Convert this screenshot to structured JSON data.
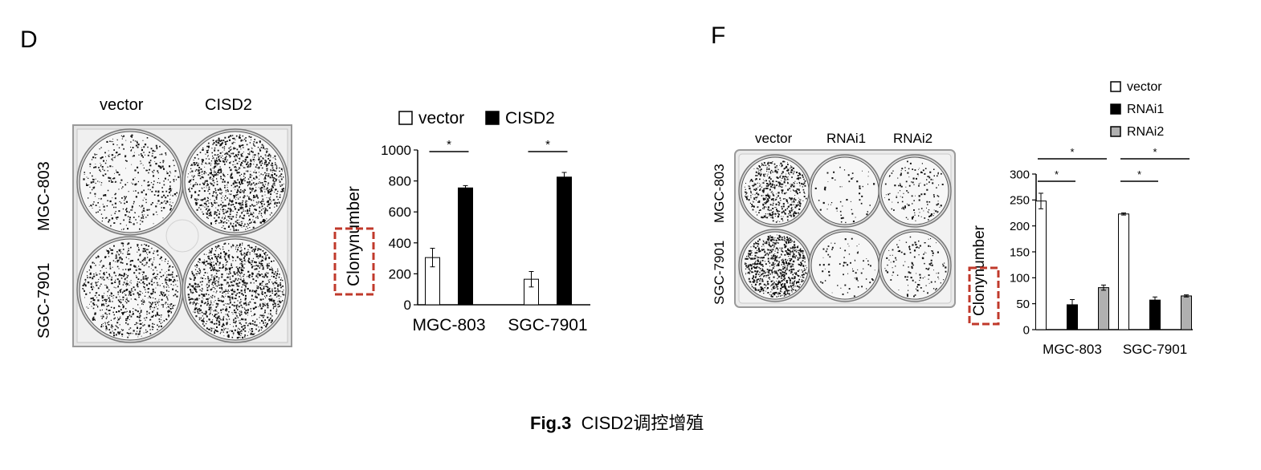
{
  "figure": {
    "caption_label": "Fig.3",
    "caption_text": "CISD2调控增殖"
  },
  "panel_d": {
    "letter": "D",
    "plate": {
      "columns": [
        "vector",
        "CISD2"
      ],
      "rows": [
        "MGC-803",
        "SGC-7901"
      ],
      "wells": [
        {
          "row": "MGC-803",
          "column": "vector",
          "density": 0.3
        },
        {
          "row": "MGC-803",
          "column": "CISD2",
          "density": 0.75
        },
        {
          "row": "SGC-7901",
          "column": "vector",
          "density": 0.55
        },
        {
          "row": "SGC-7901",
          "column": "CISD2",
          "density": 0.8
        }
      ]
    }
  },
  "panel_f": {
    "letter": "F",
    "plate": {
      "columns": [
        "vector",
        "RNAi1",
        "RNAi2"
      ],
      "rows": [
        "MGC-803",
        "SGC-7901"
      ],
      "wells": [
        {
          "row": "MGC-803",
          "column": "vector",
          "density": 0.35
        },
        {
          "row": "MGC-803",
          "column": "RNAi1",
          "density": 0.04
        },
        {
          "row": "MGC-803",
          "column": "RNAi2",
          "density": 0.1
        },
        {
          "row": "SGC-7901",
          "column": "vector",
          "density": 0.5
        },
        {
          "row": "SGC-7901",
          "column": "RNAi1",
          "density": 0.05
        },
        {
          "row": "SGC-7901",
          "column": "RNAi2",
          "density": 0.09
        }
      ]
    }
  },
  "chart_data": [
    {
      "panel": "D",
      "type": "bar",
      "ylabel": "Clony number",
      "ylim": [
        0,
        1000
      ],
      "yticks": [
        0,
        200,
        400,
        600,
        800,
        1000
      ],
      "categories": [
        "MGC-803",
        "SGC-7901"
      ],
      "legend": "top",
      "series": [
        {
          "name": "vector",
          "fill": "#ffffff",
          "values": [
            305,
            165
          ],
          "errors": [
            60,
            50
          ]
        },
        {
          "name": "CISD2",
          "fill": "#000000",
          "values": [
            755,
            825
          ],
          "errors": [
            15,
            30
          ]
        }
      ],
      "significance": [
        {
          "category": "MGC-803",
          "label": "*"
        },
        {
          "category": "SGC-7901",
          "label": "*"
        }
      ],
      "highlight": "Clony"
    },
    {
      "panel": "F",
      "type": "bar",
      "ylabel": "Clony number",
      "ylim": [
        0,
        300
      ],
      "yticks": [
        0,
        50,
        100,
        150,
        200,
        250,
        300
      ],
      "categories": [
        "MGC-803",
        "SGC-7901"
      ],
      "legend": "top-right",
      "series": [
        {
          "name": "vector",
          "fill": "#ffffff",
          "values": [
            248,
            223
          ],
          "errors": [
            15,
            2
          ]
        },
        {
          "name": "RNAi1",
          "fill": "#000000",
          "values": [
            48,
            57
          ],
          "errors": [
            10,
            6
          ]
        },
        {
          "name": "RNAi2",
          "fill": "#b0b0b0",
          "values": [
            81,
            65
          ],
          "errors": [
            5,
            2
          ]
        }
      ],
      "significance": [
        {
          "category": "MGC-803",
          "label": "*",
          "level": 1
        },
        {
          "category": "MGC-803",
          "label": "*",
          "level": 2
        },
        {
          "category": "SGC-7901",
          "label": "*",
          "level": 1
        },
        {
          "category": "SGC-7901",
          "label": "*",
          "level": 2
        }
      ],
      "highlight": "Clony"
    }
  ]
}
